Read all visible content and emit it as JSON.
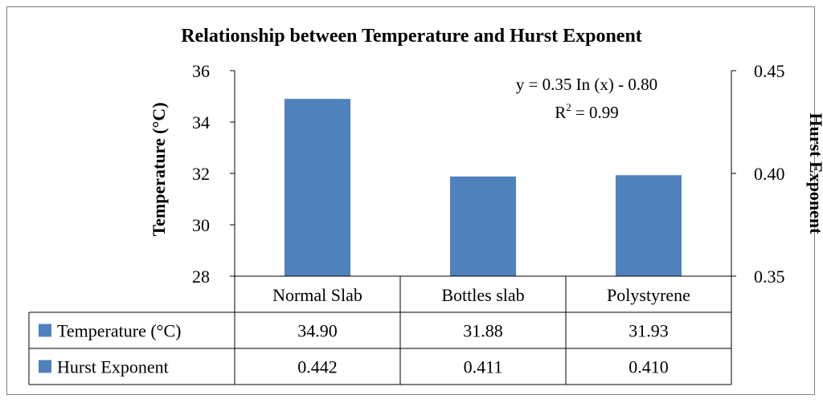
{
  "chart_data": {
    "type": "bar",
    "title": "Relationship between Temperature and Hurst Exponent",
    "categories": [
      "Normal Slab",
      "Bottles slab",
      "Polystyrene"
    ],
    "series": [
      {
        "name": "Temperature (°C)",
        "values": [
          34.9,
          31.88,
          31.93
        ],
        "display": [
          "34.90",
          "31.88",
          "31.93"
        ],
        "axis": "left",
        "color": "#4f81bd"
      },
      {
        "name": "Hurst Exponent",
        "values": [
          0.442,
          0.411,
          0.41
        ],
        "display": [
          "0.442",
          "0.411",
          "0.410"
        ],
        "axis": "right",
        "color": "#4f81bd"
      }
    ],
    "ylabel": "Temperature (°C)",
    "y2label": "Hurst Exponent",
    "ylim": [
      28,
      36
    ],
    "yticks": [
      "28",
      "30",
      "32",
      "34",
      "36"
    ],
    "y2lim": [
      0.35,
      0.45
    ],
    "y2ticks": [
      "0.35",
      "0.40",
      "0.45"
    ],
    "annotation": {
      "equation": "y = 0.35 In (x) - 0.80",
      "r2_prefix": "R",
      "r2_sup": "2",
      "r2_value": " = 0.99"
    },
    "legend": "data-table",
    "grid": false
  }
}
